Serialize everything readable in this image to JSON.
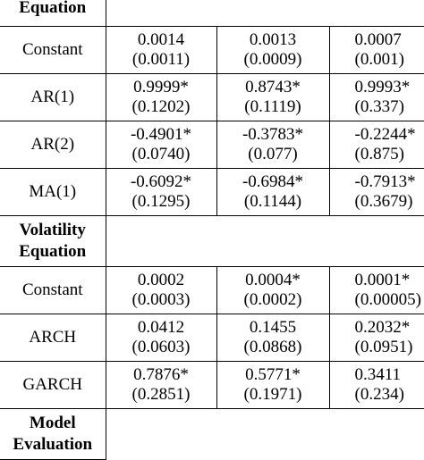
{
  "table": {
    "sections": [
      {
        "label_lines": [
          "Equation"
        ],
        "rows": [
          {
            "name": "Constant",
            "cells": [
              {
                "value": "0.0014",
                "se": "(0.0011)"
              },
              {
                "value": "0.0013",
                "se": "(0.0009)"
              },
              {
                "value": "0.0007",
                "se": "(0.001)"
              }
            ]
          },
          {
            "name": "AR(1)",
            "cells": [
              {
                "value": "0.9999*",
                "se": "(0.1202)"
              },
              {
                "value": "0.8743*",
                "se": "(0.1119)"
              },
              {
                "value": "0.9993*",
                "se": "(0.337)"
              }
            ]
          },
          {
            "name": "AR(2)",
            "cells": [
              {
                "value": "-0.4901*",
                "se": "(0.0740)"
              },
              {
                "value": "-0.3783*",
                "se": "(0.077)"
              },
              {
                "value": "-0.2244*",
                "se": "(0.875)"
              }
            ]
          },
          {
            "name": "MA(1)",
            "cells": [
              {
                "value": "-0.6092*",
                "se": "(0.1295)"
              },
              {
                "value": "-0.6984*",
                "se": "(0.1144)"
              },
              {
                "value": "-0.7913*",
                "se": "(0.3679)"
              }
            ]
          }
        ]
      },
      {
        "label_lines": [
          "Volatility",
          "Equation"
        ],
        "rows": [
          {
            "name": "Constant",
            "cells": [
              {
                "value": "0.0002",
                "se": "(0.0003)"
              },
              {
                "value": "0.0004*",
                "se": "(0.0002)"
              },
              {
                "value": "0.0001*",
                "se": "(0.00005)"
              }
            ]
          },
          {
            "name": "ARCH",
            "cells": [
              {
                "value": "0.0412",
                "se": "(0.0603)"
              },
              {
                "value": "0.1455",
                "se": "(0.0868)"
              },
              {
                "value": "0.2032*",
                "se": "(0.0951)"
              }
            ]
          },
          {
            "name": "GARCH",
            "cells": [
              {
                "value": "0.7876*",
                "se": "(0.2851)"
              },
              {
                "value": "0.5771*",
                "se": "(0.1971)"
              },
              {
                "value": "0.3411",
                "se": "(0.234)"
              }
            ]
          }
        ]
      },
      {
        "label_lines": [
          "Model",
          "Evaluation"
        ],
        "rows": []
      }
    ]
  }
}
